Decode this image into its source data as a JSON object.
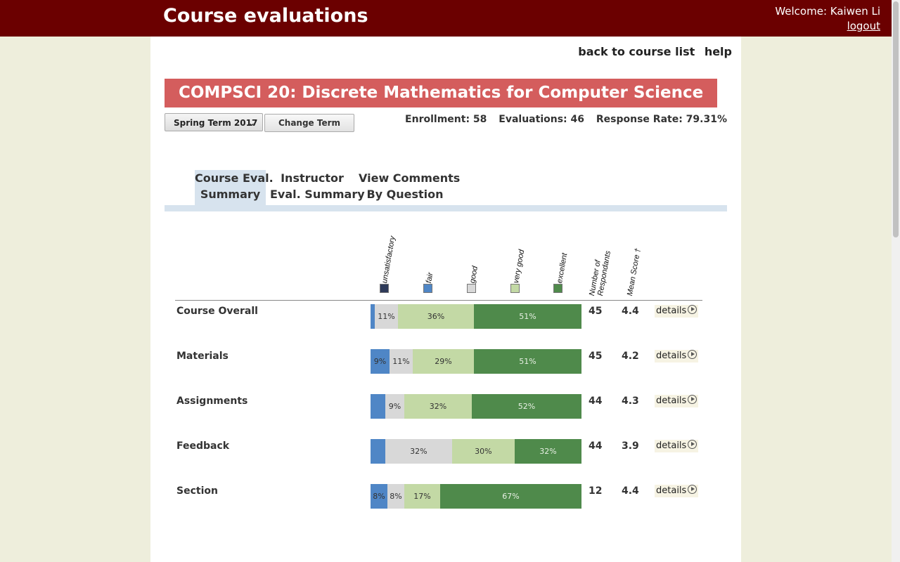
{
  "header": {
    "title": "Course evaluations",
    "welcome": "Welcome: Kaiwen Li",
    "logout": "logout"
  },
  "links": {
    "back": "back to course list",
    "help": "help"
  },
  "course": {
    "title": "COMPSCI 20: Discrete Mathematics for Computer Science"
  },
  "term": {
    "selected": "Spring Term 2017",
    "change_label": "Change Term"
  },
  "stats": {
    "enrollment": "Enrollment: 58",
    "evaluations": "Evaluations: 46",
    "response_rate": "Response Rate: 79.31%"
  },
  "tabs": [
    {
      "line1": "Course Eval.",
      "line2": "Summary"
    },
    {
      "line1": "Instructor",
      "line2": "Eval. Summary"
    },
    {
      "line1": "View Comments",
      "line2": "By Question"
    }
  ],
  "columns": {
    "unsatisfactory": "unsatisfactory",
    "fair": "fair",
    "good": "good",
    "very_good": "very good",
    "excellent": "excellent",
    "respondents_1": "Number of",
    "respondents_2": "Respondants",
    "mean": "Mean Score †"
  },
  "colors": {
    "unsatisfactory": "#2e3a59",
    "fair": "#4f86c6",
    "good": "#d8d8d8",
    "very_good": "#c3d9a5",
    "excellent": "#4f8a4b"
  },
  "details_label": "details",
  "rows": [
    {
      "label": "Course Overall",
      "respondents": "45",
      "mean": "4.4",
      "segments": [
        {
          "level": "fair",
          "pct": 2,
          "text": ""
        },
        {
          "level": "good",
          "pct": 11,
          "text": "11%"
        },
        {
          "level": "very_good",
          "pct": 36,
          "text": "36%"
        },
        {
          "level": "excellent",
          "pct": 51,
          "text": "51%"
        }
      ]
    },
    {
      "label": "Materials",
      "respondents": "45",
      "mean": "4.2",
      "segments": [
        {
          "level": "fair",
          "pct": 9,
          "text": "9%"
        },
        {
          "level": "good",
          "pct": 11,
          "text": "11%"
        },
        {
          "level": "very_good",
          "pct": 29,
          "text": "29%"
        },
        {
          "level": "excellent",
          "pct": 51,
          "text": "51%"
        }
      ]
    },
    {
      "label": "Assignments",
      "respondents": "44",
      "mean": "4.3",
      "segments": [
        {
          "level": "fair",
          "pct": 7,
          "text": ""
        },
        {
          "level": "good",
          "pct": 9,
          "text": "9%"
        },
        {
          "level": "very_good",
          "pct": 32,
          "text": "32%"
        },
        {
          "level": "excellent",
          "pct": 52,
          "text": "52%"
        }
      ]
    },
    {
      "label": "Feedback",
      "respondents": "44",
      "mean": "3.9",
      "segments": [
        {
          "level": "fair",
          "pct": 7,
          "text": ""
        },
        {
          "level": "good",
          "pct": 32,
          "text": "32%"
        },
        {
          "level": "very_good",
          "pct": 30,
          "text": "30%"
        },
        {
          "level": "excellent",
          "pct": 32,
          "text": "32%"
        }
      ]
    },
    {
      "label": "Section",
      "respondents": "12",
      "mean": "4.4",
      "segments": [
        {
          "level": "fair",
          "pct": 8,
          "text": "8%"
        },
        {
          "level": "good",
          "pct": 8,
          "text": "8%"
        },
        {
          "level": "very_good",
          "pct": 17,
          "text": "17%"
        },
        {
          "level": "excellent",
          "pct": 67,
          "text": "67%"
        }
      ]
    }
  ]
}
